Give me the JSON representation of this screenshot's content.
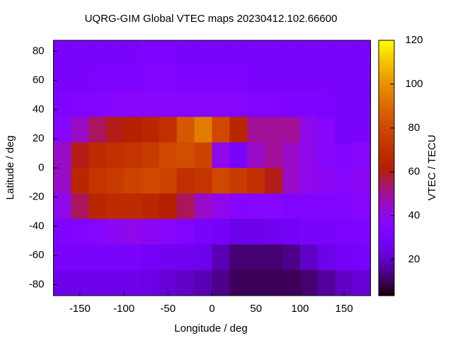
{
  "chart_data": {
    "type": "heatmap",
    "title": "UQRG-GIM Global VTEC maps 20230412.102.66600",
    "x_label": "Longitude / deg",
    "y_label": "Latitude / deg",
    "colorbar_label": "VTEC / TECU",
    "x": [
      -170,
      -150,
      -130,
      -110,
      -90,
      -70,
      -50,
      -30,
      -10,
      10,
      30,
      50,
      70,
      90,
      110,
      130,
      150,
      170
    ],
    "y": [
      78.75,
      61.25,
      43.75,
      26.25,
      8.75,
      -8.75,
      -26.25,
      -43.75,
      -61.25,
      -78.75
    ],
    "z": [
      [
        30,
        30,
        30,
        30,
        30,
        32,
        32,
        30,
        30,
        30,
        30,
        30,
        30,
        30,
        30,
        30,
        30,
        30
      ],
      [
        30,
        30,
        31,
        32,
        32,
        33,
        33,
        32,
        32,
        32,
        32,
        30,
        30,
        30,
        30,
        30,
        30,
        30
      ],
      [
        32,
        33,
        34,
        35,
        36,
        36,
        36,
        35,
        35,
        35,
        35,
        33,
        33,
        32,
        32,
        31,
        30,
        30
      ],
      [
        35,
        45,
        55,
        60,
        62,
        65,
        70,
        85,
        95,
        80,
        65,
        50,
        50,
        50,
        40,
        35,
        30,
        30
      ],
      [
        45,
        60,
        68,
        70,
        72,
        75,
        80,
        82,
        78,
        40,
        30,
        45,
        50,
        45,
        40,
        35,
        33,
        35
      ],
      [
        45,
        65,
        72,
        75,
        78,
        80,
        78,
        70,
        72,
        80,
        75,
        70,
        60,
        45,
        40,
        38,
        35,
        38
      ],
      [
        40,
        55,
        65,
        68,
        68,
        65,
        62,
        55,
        45,
        40,
        35,
        35,
        35,
        33,
        33,
        33,
        33,
        35
      ],
      [
        32,
        33,
        35,
        38,
        40,
        38,
        35,
        33,
        30,
        28,
        25,
        25,
        26,
        28,
        30,
        30,
        31,
        32
      ],
      [
        30,
        30,
        30,
        30,
        30,
        28,
        27,
        26,
        25,
        18,
        12,
        12,
        12,
        14,
        20,
        25,
        28,
        29
      ],
      [
        25,
        25,
        25,
        25,
        25,
        24,
        22,
        20,
        18,
        14,
        10,
        10,
        10,
        10,
        12,
        16,
        20,
        22
      ]
    ],
    "xlim": [
      -180,
      180
    ],
    "ylim": [
      -87.5,
      87.5
    ],
    "zlim": [
      3.5,
      120
    ],
    "xticks": [
      -150,
      -100,
      -50,
      0,
      50,
      100,
      150
    ],
    "yticks": [
      -80,
      -60,
      -40,
      -20,
      0,
      20,
      40,
      60,
      80
    ],
    "zticks": [
      20,
      40,
      60,
      80,
      100,
      120
    ]
  }
}
